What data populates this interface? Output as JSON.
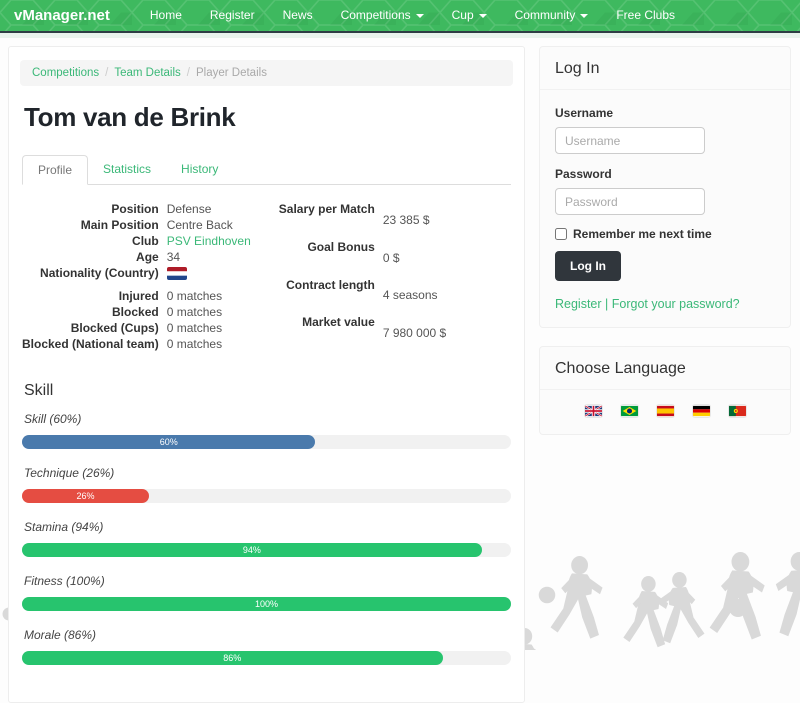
{
  "nav": {
    "brand": "vManager.net",
    "items": [
      {
        "label": "Home",
        "dropdown": false
      },
      {
        "label": "Register",
        "dropdown": false
      },
      {
        "label": "News",
        "dropdown": false
      },
      {
        "label": "Competitions",
        "dropdown": true
      },
      {
        "label": "Cup",
        "dropdown": true
      },
      {
        "label": "Community",
        "dropdown": true
      },
      {
        "label": "Free Clubs",
        "dropdown": false
      }
    ]
  },
  "breadcrumb": {
    "items": [
      "Competitions",
      "Team Details",
      "Player Details"
    ]
  },
  "page_title": "Tom van de Brink",
  "tabs": [
    {
      "label": "Profile",
      "active": true
    },
    {
      "label": "Statistics",
      "active": false
    },
    {
      "label": "History",
      "active": false
    }
  ],
  "details": {
    "left": [
      {
        "label": "Position",
        "value": "Defense"
      },
      {
        "label": "Main Position",
        "value": "Centre Back"
      },
      {
        "label": "Club",
        "value": "PSV Eindhoven",
        "link": true
      },
      {
        "label": "Age",
        "value": "34"
      },
      {
        "label": "Nationality (Country)",
        "value": "",
        "flag": "netherlands-flag"
      },
      {
        "label": "Injured",
        "value": "0 matches"
      },
      {
        "label": "Blocked",
        "value": "0 matches"
      },
      {
        "label": "Blocked (Cups)",
        "value": "0 matches"
      },
      {
        "label": "Blocked (National team)",
        "value": "0 matches"
      }
    ],
    "right": [
      {
        "label": "Salary per Match",
        "value": "23 385 $"
      },
      {
        "label": "Goal Bonus",
        "value": "0 $"
      },
      {
        "label": "Contract length",
        "value": "4 seasons"
      },
      {
        "label": "Market value",
        "value": "7 980 000 $"
      }
    ]
  },
  "skills": {
    "heading": "Skill",
    "bars": [
      {
        "label": "Skill (60%)",
        "percent": 60,
        "value_label": "60%",
        "color": "#4a7aac"
      },
      {
        "label": "Technique (26%)",
        "percent": 26,
        "value_label": "26%",
        "color": "#e54d42"
      },
      {
        "label": "Stamina (94%)",
        "percent": 94,
        "value_label": "94%",
        "color": "#27c46e"
      },
      {
        "label": "Fitness (100%)",
        "percent": 100,
        "value_label": "100%",
        "color": "#27c46e"
      },
      {
        "label": "Morale (86%)",
        "percent": 86,
        "value_label": "86%",
        "color": "#27c46e"
      }
    ]
  },
  "login": {
    "heading": "Log In",
    "username_label": "Username",
    "username_placeholder": "Username",
    "password_label": "Password",
    "password_placeholder": "Password",
    "remember_label": "Remember me next time",
    "button_label": "Log In",
    "register_link": "Register",
    "separator": "|",
    "forgot_link": "Forgot your password?"
  },
  "language": {
    "heading": "Choose Language",
    "flags": [
      "uk-flag",
      "brazil-flag",
      "spain-flag",
      "germany-flag",
      "portugal-flag"
    ]
  },
  "colors": {
    "brand_green": "#3eb95f",
    "link_green": "#3bb878",
    "button_dark": "#30363c"
  }
}
